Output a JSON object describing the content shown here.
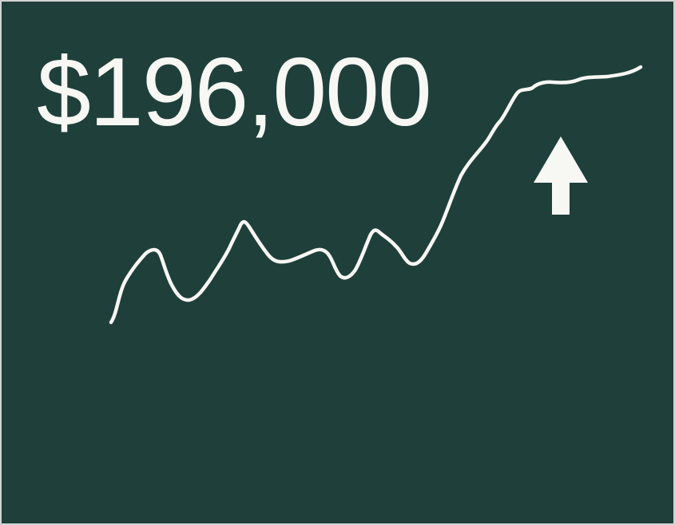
{
  "card": {
    "amount": "$196,000",
    "trend_direction": "up",
    "trend_icon": "arrow-up-icon",
    "colors": {
      "background": "#1f3f3a",
      "foreground": "#f7f7f4"
    }
  }
}
